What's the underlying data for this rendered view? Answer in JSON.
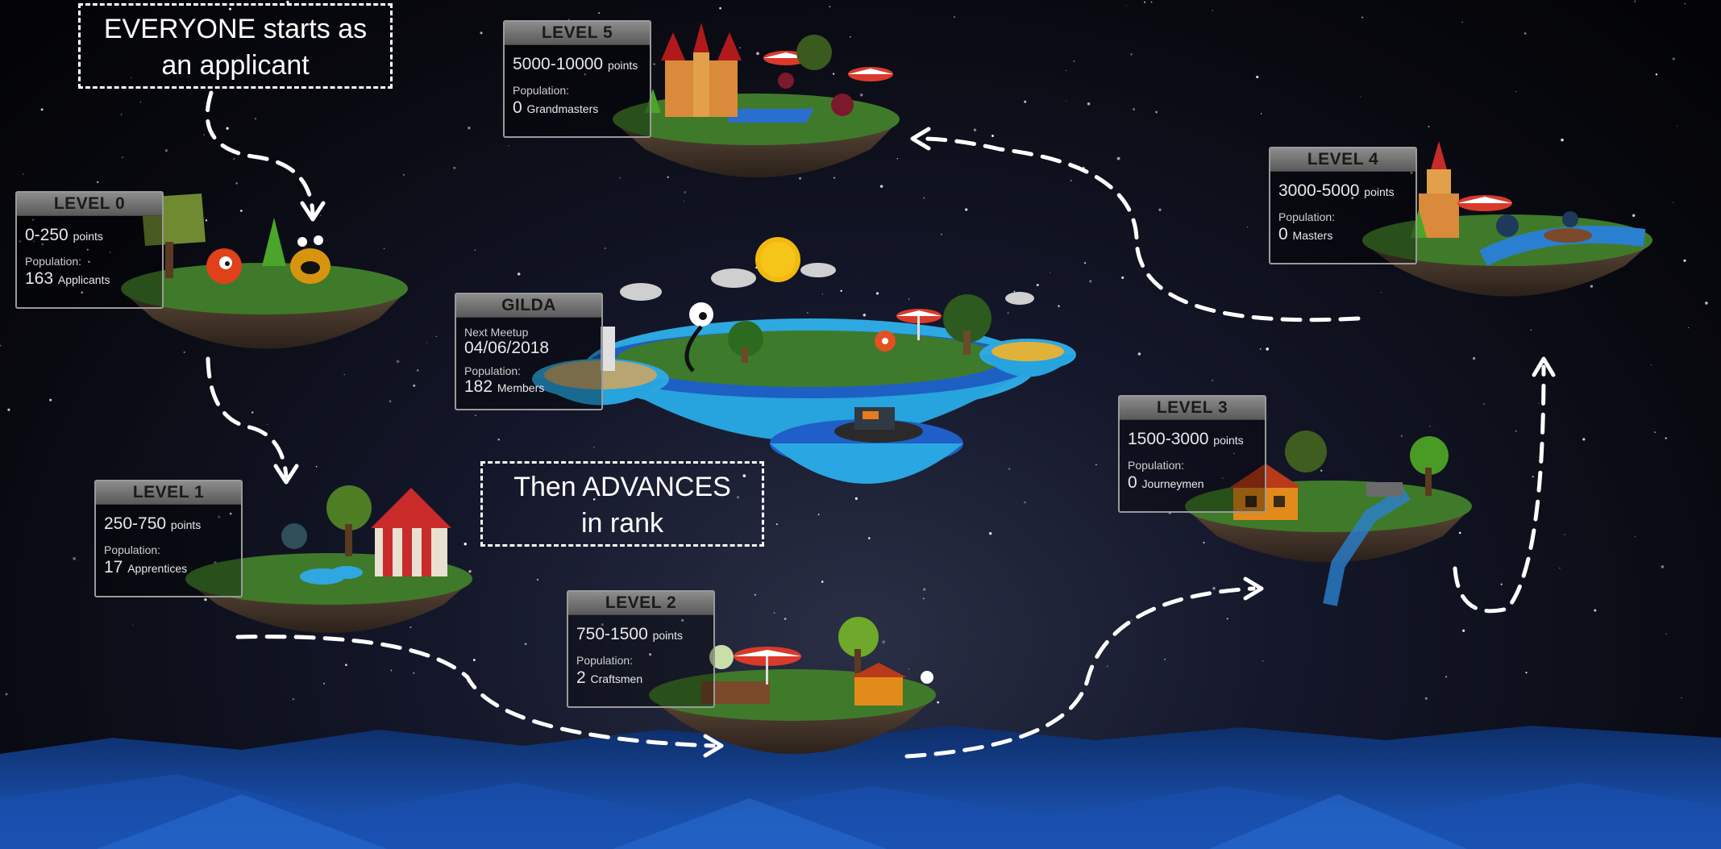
{
  "notes": {
    "start_line1": "EVERYONE starts as",
    "start_line2": "an applicant",
    "advance_line1": "Then ADVANCES",
    "advance_line2": "in rank"
  },
  "guild": {
    "title": "GILDA",
    "meetup_label": "Next Meetup",
    "meetup_date": "04/06/2018",
    "population_label": "Population:",
    "population_count": "182",
    "population_unit": "Members"
  },
  "levels": [
    {
      "title": "LEVEL 0",
      "range": "0-250",
      "unit": "points",
      "population_label": "Population:",
      "count": "163",
      "rank": "Applicants"
    },
    {
      "title": "LEVEL 1",
      "range": "250-750",
      "unit": "points",
      "population_label": "Population:",
      "count": "17",
      "rank": "Apprentices"
    },
    {
      "title": "LEVEL 2",
      "range": "750-1500",
      "unit": "points",
      "population_label": "Population:",
      "count": "2",
      "rank": "Craftsmen"
    },
    {
      "title": "LEVEL 3",
      "range": "1500-3000",
      "unit": "points",
      "population_label": "Population:",
      "count": "0",
      "rank": "Journeymen"
    },
    {
      "title": "LEVEL 4",
      "range": "3000-5000",
      "unit": "points",
      "population_label": "Population:",
      "count": "0",
      "rank": "Masters"
    },
    {
      "title": "LEVEL 5",
      "range": "5000-10000",
      "unit": "points",
      "population_label": "Population:",
      "count": "0",
      "rank": "Grandmasters"
    }
  ],
  "colors": {
    "sky": "#08090f",
    "ocean": "#1b4fa8",
    "grass": "#3f7a2a",
    "rock": "#4a3a30",
    "water": "#2ab0e6",
    "arrow": "#ffffff"
  }
}
